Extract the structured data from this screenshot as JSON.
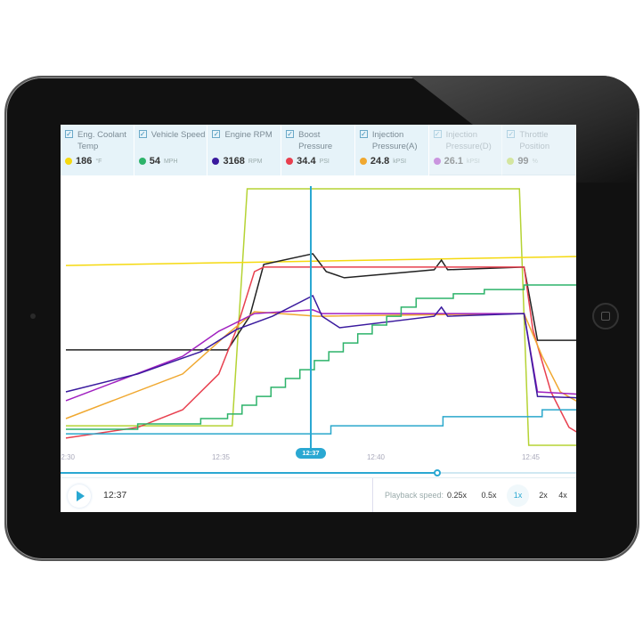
{
  "header": {
    "columns": [
      {
        "label": "Eng. Coolant Temp",
        "value": "186",
        "unit": "°F",
        "color": "#f5d90f",
        "checked": true,
        "active": true
      },
      {
        "label": "Vehicle Speed",
        "value": "54",
        "unit": "MPH",
        "color": "#2db36a",
        "checked": true,
        "active": true
      },
      {
        "label": "Engine RPM",
        "value": "3168",
        "unit": "RPM",
        "color": "#3a1a9e",
        "checked": true,
        "active": true
      },
      {
        "label": "Boost Pressure",
        "value": "34.4",
        "unit": "PSI",
        "color": "#e8404f",
        "checked": true,
        "active": true
      },
      {
        "label": "Injection Pressure(A)",
        "value": "24.8",
        "unit": "kPSI",
        "color": "#f0a830",
        "checked": true,
        "active": true
      },
      {
        "label": "Injection Pressure(D)",
        "value": "26.1",
        "unit": "kPSI",
        "color": "#a020c0",
        "checked": true,
        "active": false
      },
      {
        "label": "Throttle Position",
        "value": "99",
        "unit": "%",
        "color": "#b5d334",
        "checked": true,
        "active": false
      }
    ]
  },
  "chart_data": {
    "type": "line",
    "x_ticks": [
      "12:30",
      "12:35",
      "12:40",
      "12:45"
    ],
    "y_scale": "relative 0-100",
    "grid": false,
    "series": [
      {
        "color": "#b5d334",
        "points": [
          [
            "12:30:00",
            7.3
          ],
          [
            "12:35:22",
            7.3
          ],
          [
            "12:35:51",
            96
          ],
          [
            "12:44:38",
            96
          ],
          [
            "12:44:56",
            0
          ],
          [
            "12:46:43",
            0
          ]
        ]
      },
      {
        "color": "#f5d90f",
        "points": [
          [
            "12:30:00",
            67.3
          ],
          [
            "12:46:43",
            70.7
          ]
        ]
      },
      {
        "color": "#222222",
        "points": [
          [
            "12:30:00",
            35.7
          ],
          [
            "12:35:13",
            35.7
          ],
          [
            "12:35:56",
            48.3
          ],
          [
            "12:36:23",
            67.7
          ],
          [
            "12:37:58",
            71.7
          ],
          [
            "12:38:24",
            65
          ],
          [
            "12:38:59",
            62.7
          ],
          [
            "12:41:53",
            65.7
          ],
          [
            "12:42:07",
            69.3
          ],
          [
            "12:42:19",
            65.7
          ],
          [
            "12:44:47",
            66.7
          ],
          [
            "12:45:13",
            39.3
          ],
          [
            "12:46:43",
            39.3
          ]
        ]
      },
      {
        "color": "#e8404f",
        "points": [
          [
            "12:30:00",
            2.7
          ],
          [
            "12:32:19",
            6.7
          ],
          [
            "12:33:46",
            13.3
          ],
          [
            "12:34:56",
            26.7
          ],
          [
            "12:35:30",
            43.3
          ],
          [
            "12:36:05",
            65
          ],
          [
            "12:36:23",
            66.7
          ],
          [
            "12:44:47",
            66.7
          ],
          [
            "12:45:04",
            43.3
          ],
          [
            "12:45:39",
            20
          ],
          [
            "12:46:14",
            6.7
          ],
          [
            "12:46:43",
            3.3
          ]
        ]
      },
      {
        "color": "#f0a830",
        "points": [
          [
            "12:30:00",
            10
          ],
          [
            "12:33:46",
            26.7
          ],
          [
            "12:35:13",
            41.7
          ],
          [
            "12:36:05",
            50
          ],
          [
            "12:38:07",
            48.3
          ],
          [
            "12:44:47",
            49.3
          ],
          [
            "12:45:22",
            33.3
          ],
          [
            "12:45:57",
            20
          ],
          [
            "12:46:43",
            15
          ]
        ]
      },
      {
        "color": "#a020c0",
        "points": [
          [
            "12:30:00",
            16.7
          ],
          [
            "12:33:46",
            33.3
          ],
          [
            "12:34:56",
            42.7
          ],
          [
            "12:36:05",
            49.3
          ],
          [
            "12:37:58",
            50.7
          ],
          [
            "12:38:16",
            49.3
          ],
          [
            "12:44:47",
            49.3
          ],
          [
            "12:45:13",
            20
          ],
          [
            "12:46:43",
            19
          ]
        ]
      },
      {
        "color": "#3a1a9e",
        "points": [
          [
            "12:30:00",
            20
          ],
          [
            "12:32:19",
            26.7
          ],
          [
            "12:34:21",
            35
          ],
          [
            "12:35:30",
            43.3
          ],
          [
            "12:36:40",
            48.3
          ],
          [
            "12:37:58",
            56
          ],
          [
            "12:38:16",
            48.3
          ],
          [
            "12:38:50",
            44
          ],
          [
            "12:41:53",
            48.3
          ],
          [
            "12:42:07",
            51.7
          ],
          [
            "12:42:19",
            48.3
          ],
          [
            "12:44:47",
            49.3
          ],
          [
            "12:45:13",
            18.3
          ],
          [
            "12:46:43",
            17.7
          ]
        ]
      },
      {
        "color": "#2db36a",
        "step": true,
        "points": [
          [
            "12:30:00",
            6
          ],
          [
            "12:32:19",
            8
          ],
          [
            "12:34:21",
            10
          ],
          [
            "12:35:13",
            11.7
          ],
          [
            "12:35:41",
            15
          ],
          [
            "12:36:09",
            18.3
          ],
          [
            "12:36:37",
            21.7
          ],
          [
            "12:37:05",
            25
          ],
          [
            "12:37:33",
            28.3
          ],
          [
            "12:38:01",
            31.7
          ],
          [
            "12:38:29",
            35
          ],
          [
            "12:38:57",
            38.3
          ],
          [
            "12:39:25",
            41.7
          ],
          [
            "12:39:53",
            45
          ],
          [
            "12:40:21",
            48.3
          ],
          [
            "12:40:49",
            51.7
          ],
          [
            "12:41:18",
            55
          ],
          [
            "12:42:30",
            56.7
          ],
          [
            "12:43:30",
            58.3
          ],
          [
            "12:44:47",
            60
          ],
          [
            "12:46:43",
            58.3
          ]
        ]
      },
      {
        "color": "#2aa8cc",
        "step": true,
        "points": [
          [
            "12:30:00",
            4.3
          ],
          [
            "12:38:33",
            7.3
          ],
          [
            "12:42:10",
            10.7
          ],
          [
            "12:45:22",
            13.3
          ],
          [
            "12:46:43",
            13.3
          ]
        ]
      }
    ]
  },
  "cursor": {
    "label": "12:37"
  },
  "playback": {
    "time": "12:37",
    "progress": 0.73,
    "speed_label": "Playback speed:",
    "speeds": [
      "0.25x",
      "0.5x",
      "1x",
      "2x",
      "4x"
    ],
    "active_speed": "1x"
  },
  "icons": {
    "play": "play-icon",
    "check": "checkbox-check-icon"
  }
}
